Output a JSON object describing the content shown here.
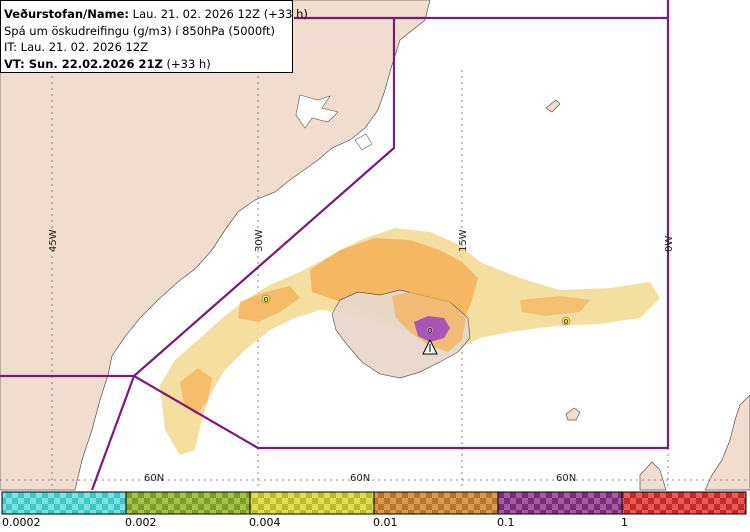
{
  "title": {
    "line1_label": "Veðurstofan/Name:",
    "line1_value": "Lau. 21. 02. 2026 12Z (+33 h)",
    "line2": "Spá um öskudreifingu (g/m3) í 850hPa (5000ft)",
    "line3": "IT: Lau. 21. 02. 2026 12Z",
    "line4_label": "VT: Sun. 22.02.2026 21Z",
    "line4_value": "(+33 h)"
  },
  "grid_labels": {
    "lon_45w": "45W",
    "lon_30w": "30W",
    "lon_15w": "15W",
    "lon_0w": "0W",
    "lat_a": "60N",
    "lat_b": "60N",
    "lat_c": "60N"
  },
  "markers": {
    "zero_west": "0",
    "zero_center": "0",
    "zero_east": "0"
  },
  "legend": {
    "bins": [
      {
        "label": "0.0002",
        "color": "#3cc8c8"
      },
      {
        "label": "0.002",
        "color": "#8cae32"
      },
      {
        "label": "0.004",
        "color": "#c8c832"
      },
      {
        "label": "0.01",
        "color": "#c88232"
      },
      {
        "label": "0.1",
        "color": "#8c3c8c"
      },
      {
        "label": "1",
        "color": "#d23232"
      }
    ]
  },
  "colors": {
    "ocean": "#ffffff",
    "land": "#f0ddd0",
    "boundary": "#7a1a7a",
    "ash_light": "#f3d98f",
    "ash_orange": "#f5b25a",
    "ash_purple": "#a855b5"
  },
  "icons": {
    "volcano": "volcano-triangle-icon"
  }
}
